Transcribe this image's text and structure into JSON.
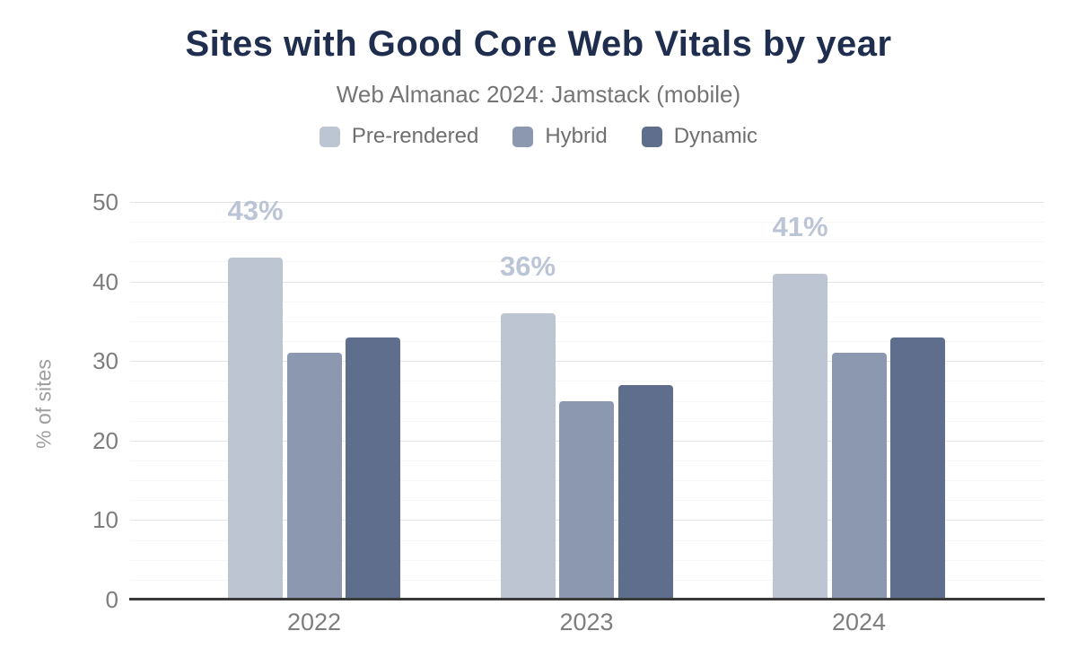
{
  "header": {
    "title": "Sites with Good Core Web Vitals by year",
    "subtitle": "Web Almanac 2024: Jamstack (mobile)"
  },
  "chart_data": {
    "type": "bar",
    "title": "Sites with Good Core Web Vitals by year",
    "subtitle": "Web Almanac 2024: Jamstack (mobile)",
    "categories": [
      "2022",
      "2023",
      "2024"
    ],
    "series": [
      {
        "name": "Pre-rendered",
        "color": "#bdc5d3",
        "values": [
          43,
          36,
          41
        ],
        "data_labels": [
          "43%",
          "36%",
          "41%"
        ]
      },
      {
        "name": "Hybrid",
        "color": "#8c98b0",
        "values": [
          31,
          25,
          31
        ]
      },
      {
        "name": "Dynamic",
        "color": "#5f6e8c",
        "values": [
          33,
          27,
          33
        ]
      }
    ],
    "xlabel": "",
    "ylabel": "% of sites",
    "ylim": [
      0,
      50
    ],
    "yticks": [
      0,
      10,
      20,
      30,
      40,
      50
    ],
    "minor_grid_step": 2.5,
    "grid": "on",
    "legend_position": "top"
  },
  "colors": {
    "title": "#1f2e4f",
    "subtitle": "#757575",
    "axis_text": "#7d7d7d",
    "axis_title": "#9e9e9e",
    "baseline": "#3a3a3a",
    "grid_major": "#e4e4e4",
    "grid_minor": "#f7f7f7",
    "data_label": "#bcc5d6",
    "background": "#ffffff"
  }
}
